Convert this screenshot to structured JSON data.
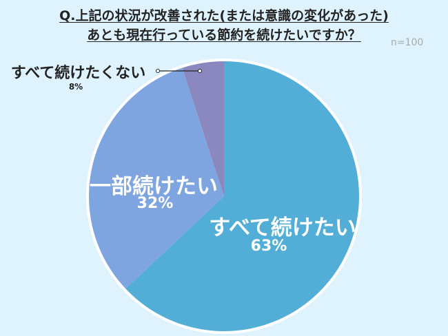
{
  "title_line1": "Q.上記の状況が改善された(または意識の変化があった)",
  "title_line2": "あとも現在行っている節約を続けたいですか？",
  "sample_size": "n=100",
  "chart_data": {
    "type": "pie",
    "title": "Q.上記の状況が改善された(または意識の変化があった)あとも現在行っている節約を続けたいですか？",
    "categories": [
      "すべて続けたい",
      "一部続けたい",
      "すべて続けたくない"
    ],
    "values": [
      63,
      32,
      8
    ],
    "labels": [
      "63%",
      "32%",
      "8%"
    ],
    "colors": [
      "#52aed6",
      "#7ea5df",
      "#8b87bf"
    ],
    "start": "12 o'clock",
    "direction": "clockwise",
    "legend": "none"
  }
}
